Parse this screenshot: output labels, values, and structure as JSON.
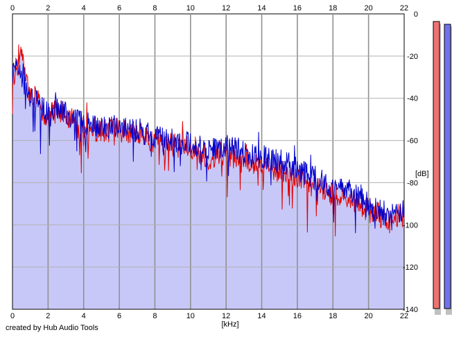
{
  "chart_data": {
    "type": "area",
    "xlabel": "[kHz]",
    "ylabel": "[dB]",
    "xlim": [
      0,
      22
    ],
    "ylim": [
      -140,
      0
    ],
    "xticks": [
      0,
      2,
      4,
      6,
      8,
      10,
      12,
      14,
      16,
      18,
      20,
      22
    ],
    "yticks": [
      0,
      -20,
      -40,
      -60,
      -80,
      -100,
      -120,
      -140
    ],
    "grid": true,
    "background_color": "#c8c8f8",
    "series": [
      {
        "color": "#e00000",
        "x": [
          0.0,
          0.25,
          0.5,
          0.75,
          1.0,
          1.5,
          2.0,
          2.5,
          3.0,
          3.5,
          4.0,
          5.0,
          6.0,
          7.0,
          8.0,
          9.0,
          10.0,
          11.0,
          12.0,
          13.0,
          14.0,
          15.0,
          16.0,
          17.0,
          18.0,
          19.0,
          20.0,
          21.0,
          22.0
        ],
        "values": [
          -30,
          -25,
          -18,
          -32,
          -38,
          -42,
          -50,
          -45,
          -48,
          -52,
          -55,
          -55,
          -55,
          -57,
          -60,
          -62,
          -63,
          -68,
          -66,
          -70,
          -72,
          -75,
          -78,
          -82,
          -84,
          -88,
          -93,
          -97,
          -95
        ]
      },
      {
        "color": "#0000cc",
        "x": [
          0.0,
          0.25,
          0.5,
          0.75,
          1.0,
          1.5,
          2.0,
          2.5,
          3.0,
          3.5,
          4.0,
          5.0,
          6.0,
          7.0,
          8.0,
          9.0,
          10.0,
          11.0,
          12.0,
          13.0,
          14.0,
          15.0,
          16.0,
          17.0,
          18.0,
          19.0,
          20.0,
          21.0,
          22.0
        ],
        "values": [
          -28,
          -27,
          -24,
          -33,
          -40,
          -43,
          -48,
          -46,
          -47,
          -50,
          -52,
          -54,
          -53,
          -56,
          -58,
          -60,
          -62,
          -65,
          -63,
          -66,
          -68,
          -70,
          -73,
          -78,
          -82,
          -84,
          -90,
          -95,
          -94
        ]
      }
    ],
    "meters": [
      {
        "color": "#ee7272"
      },
      {
        "color": "#7272ee"
      }
    ]
  },
  "footer": {
    "credit": "created by Hub Audio Tools"
  }
}
